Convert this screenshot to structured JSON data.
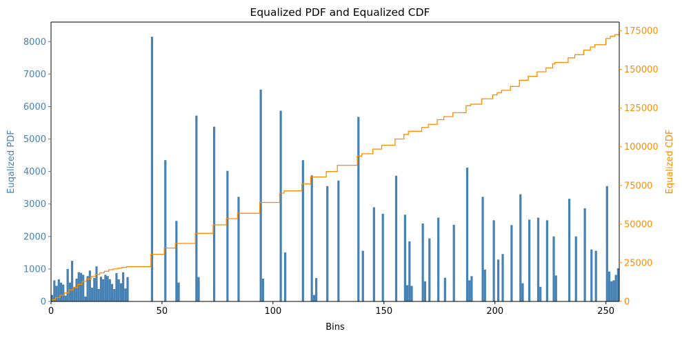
{
  "colors": {
    "pdf": "#4682b4",
    "cdf": "#ff8c00",
    "axis": "#000000",
    "background": "#ffffff"
  },
  "chart_data": {
    "type": "bar",
    "title": "Equalized PDF and Equalized CDF",
    "xlabel": "Bins",
    "ylabel_left": "Euqalized PDF",
    "ylabel_right": "Equalized CDF",
    "xlim": [
      0,
      256
    ],
    "ylim_left": [
      0,
      8600
    ],
    "ylim_right": [
      0,
      180600
    ],
    "x_ticks": [
      0,
      50,
      100,
      150,
      200,
      250
    ],
    "y_ticks_left": [
      0,
      1000,
      2000,
      3000,
      4000,
      5000,
      6000,
      7000,
      8000
    ],
    "y_ticks_right": [
      0,
      25000,
      50000,
      75000,
      100000,
      125000,
      150000,
      175000
    ],
    "grid": false,
    "legend": "none",
    "series": [
      {
        "type": "bar",
        "axis": "left",
        "bins": [
          [
            0,
            200
          ],
          [
            1,
            650
          ],
          [
            2,
            480
          ],
          [
            3,
            680
          ],
          [
            4,
            580
          ],
          [
            5,
            520
          ],
          [
            6,
            180
          ],
          [
            7,
            1000
          ],
          [
            8,
            580
          ],
          [
            9,
            1250
          ],
          [
            10,
            450
          ],
          [
            11,
            700
          ],
          [
            12,
            900
          ],
          [
            13,
            880
          ],
          [
            14,
            820
          ],
          [
            15,
            150
          ],
          [
            16,
            780
          ],
          [
            17,
            950
          ],
          [
            18,
            420
          ],
          [
            19,
            720
          ],
          [
            20,
            1080
          ],
          [
            21,
            380
          ],
          [
            22,
            760
          ],
          [
            23,
            680
          ],
          [
            24,
            820
          ],
          [
            25,
            780
          ],
          [
            26,
            680
          ],
          [
            27,
            540
          ],
          [
            28,
            380
          ],
          [
            29,
            870
          ],
          [
            30,
            680
          ],
          [
            31,
            560
          ],
          [
            32,
            900
          ],
          [
            33,
            400
          ],
          [
            34,
            750
          ],
          [
            45,
            8150
          ],
          [
            51,
            4350
          ],
          [
            56,
            2480
          ],
          [
            57,
            580
          ],
          [
            65,
            5720
          ],
          [
            66,
            750
          ],
          [
            73,
            5380
          ],
          [
            79,
            4020
          ],
          [
            84,
            3220
          ],
          [
            94,
            6520
          ],
          [
            95,
            700
          ],
          [
            103,
            5870
          ],
          [
            105,
            1510
          ],
          [
            113,
            4350
          ],
          [
            117,
            3880
          ],
          [
            118,
            200
          ],
          [
            119,
            720
          ],
          [
            124,
            3550
          ],
          [
            129,
            3720
          ],
          [
            138,
            5680
          ],
          [
            140,
            1560
          ],
          [
            145,
            2900
          ],
          [
            149,
            2700
          ],
          [
            155,
            3870
          ],
          [
            159,
            2670
          ],
          [
            160,
            500
          ],
          [
            161,
            1850
          ],
          [
            162,
            480
          ],
          [
            167,
            2400
          ],
          [
            168,
            620
          ],
          [
            170,
            1940
          ],
          [
            174,
            2580
          ],
          [
            177,
            730
          ],
          [
            181,
            2360
          ],
          [
            187,
            4120
          ],
          [
            188,
            650
          ],
          [
            189,
            780
          ],
          [
            194,
            3220
          ],
          [
            195,
            980
          ],
          [
            199,
            2500
          ],
          [
            201,
            1290
          ],
          [
            203,
            1460
          ],
          [
            207,
            2350
          ],
          [
            211,
            3300
          ],
          [
            212,
            560
          ],
          [
            215,
            2520
          ],
          [
            219,
            2580
          ],
          [
            220,
            450
          ],
          [
            223,
            2500
          ],
          [
            226,
            2000
          ],
          [
            227,
            800
          ],
          [
            233,
            3160
          ],
          [
            236,
            2000
          ],
          [
            240,
            2870
          ],
          [
            243,
            1600
          ],
          [
            245,
            1560
          ],
          [
            250,
            3550
          ],
          [
            251,
            920
          ],
          [
            252,
            620
          ],
          [
            253,
            650
          ],
          [
            254,
            820
          ],
          [
            255,
            1020
          ]
        ]
      },
      {
        "type": "step",
        "axis": "right",
        "points": [
          [
            0,
            1000
          ],
          [
            2,
            2500
          ],
          [
            4,
            4000
          ],
          [
            6,
            5500
          ],
          [
            8,
            7500
          ],
          [
            10,
            9000
          ],
          [
            12,
            11000
          ],
          [
            14,
            13000
          ],
          [
            16,
            14500
          ],
          [
            18,
            16000
          ],
          [
            20,
            17500
          ],
          [
            22,
            18500
          ],
          [
            24,
            19500
          ],
          [
            26,
            20500
          ],
          [
            28,
            21000
          ],
          [
            30,
            21500
          ],
          [
            32,
            22000
          ],
          [
            34,
            22500
          ],
          [
            45,
            30500
          ],
          [
            51,
            34500
          ],
          [
            56,
            37500
          ],
          [
            65,
            44000
          ],
          [
            73,
            49500
          ],
          [
            79,
            53500
          ],
          [
            84,
            57000
          ],
          [
            94,
            64000
          ],
          [
            103,
            70000
          ],
          [
            105,
            71500
          ],
          [
            113,
            76000
          ],
          [
            117,
            80500
          ],
          [
            124,
            84000
          ],
          [
            129,
            88000
          ],
          [
            138,
            94000
          ],
          [
            140,
            95500
          ],
          [
            145,
            98500
          ],
          [
            149,
            101000
          ],
          [
            155,
            105000
          ],
          [
            159,
            108000
          ],
          [
            161,
            110000
          ],
          [
            167,
            112500
          ],
          [
            170,
            114500
          ],
          [
            174,
            117500
          ],
          [
            177,
            119500
          ],
          [
            181,
            122000
          ],
          [
            187,
            126500
          ],
          [
            189,
            127500
          ],
          [
            194,
            131000
          ],
          [
            199,
            133500
          ],
          [
            201,
            135000
          ],
          [
            203,
            136500
          ],
          [
            207,
            139000
          ],
          [
            211,
            143000
          ],
          [
            215,
            145500
          ],
          [
            219,
            148500
          ],
          [
            223,
            151000
          ],
          [
            226,
            153500
          ],
          [
            227,
            154500
          ],
          [
            233,
            157500
          ],
          [
            236,
            159500
          ],
          [
            240,
            162500
          ],
          [
            243,
            164500
          ],
          [
            245,
            166000
          ],
          [
            250,
            170000
          ],
          [
            252,
            171500
          ],
          [
            254,
            172500
          ],
          [
            256,
            174000
          ]
        ]
      }
    ]
  }
}
